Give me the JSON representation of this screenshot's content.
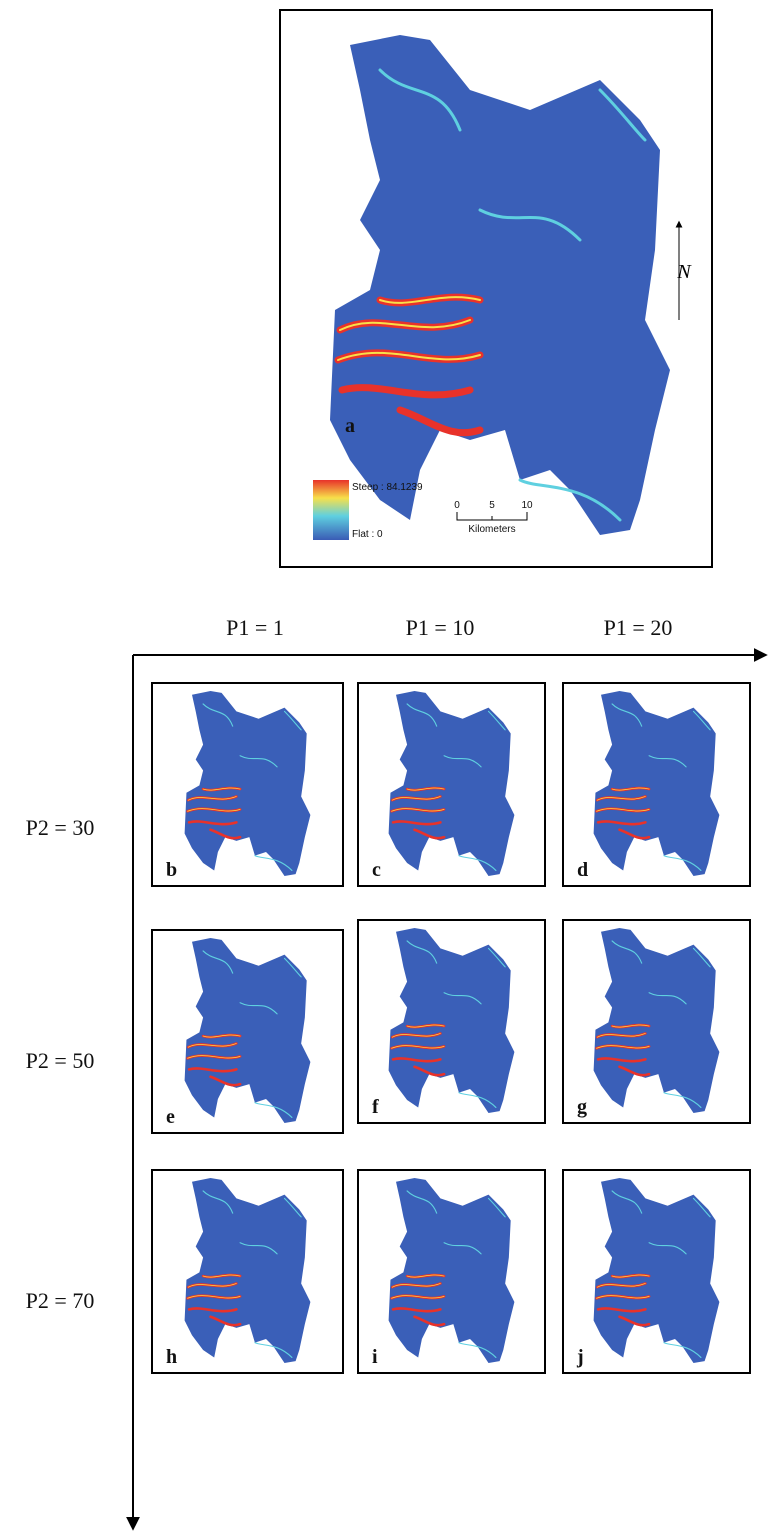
{
  "panel_a": {
    "label": "a",
    "legend": {
      "max": "Steep : 84.1239",
      "min": "Flat : 0"
    },
    "scale_bar": {
      "ticks": [
        "0",
        "5",
        "10"
      ],
      "unit": "Kilometers"
    },
    "north": "N"
  },
  "columns": [
    "P1 = 1",
    "P1 = 10",
    "P1 = 20"
  ],
  "rows": [
    "P2 = 30",
    "P2 = 50",
    "P2 = 70"
  ],
  "panels": [
    [
      "b",
      "c",
      "d"
    ],
    [
      "e",
      "f",
      "g"
    ],
    [
      "h",
      "i",
      "j"
    ]
  ]
}
